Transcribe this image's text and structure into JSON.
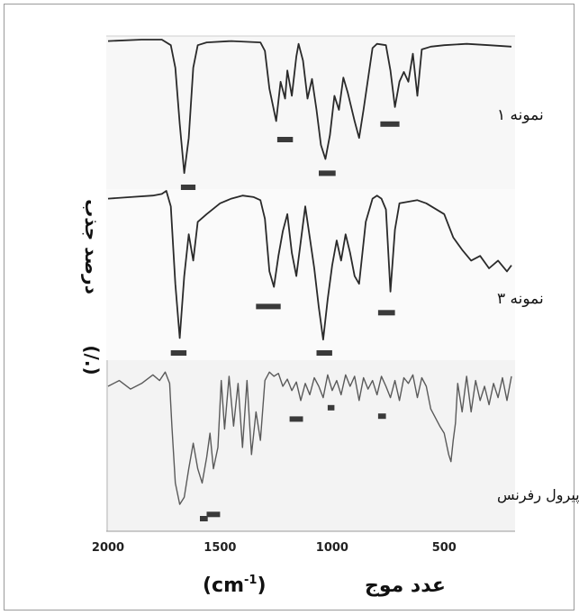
{
  "chart_data": {
    "type": "line",
    "title": "",
    "xlabel": "عدد موج(cm-1)",
    "xlabel_text": "عدد موج",
    "xlabel_unit": "(cm",
    "xlabel_sup": "-1",
    "xlabel_close": ")",
    "ylabel": "درصد جذب (%)",
    "ylabel_text": "درصد جذب",
    "ylabel_unit": "(/.)",
    "xlim": [
      2000,
      200
    ],
    "x_ticks": [
      2000,
      1500,
      1000,
      500
    ],
    "x_tick_labels": [
      "2000",
      "1500",
      "1000",
      "500"
    ],
    "grid": false,
    "series": [
      {
        "name": "نمونه ۱",
        "label": "نمونه ۱",
        "color": "#2a2a2a",
        "x": [
          2000,
          1850,
          1760,
          1720,
          1700,
          1680,
          1660,
          1640,
          1620,
          1600,
          1560,
          1450,
          1320,
          1300,
          1280,
          1250,
          1230,
          1210,
          1200,
          1180,
          1160,
          1150,
          1130,
          1110,
          1090,
          1070,
          1050,
          1030,
          1010,
          990,
          970,
          950,
          930,
          900,
          880,
          860,
          820,
          800,
          760,
          740,
          720,
          700,
          680,
          660,
          640,
          620,
          600,
          560,
          500,
          400,
          300,
          200
        ],
        "y": [
          99,
          100,
          100,
          96,
          80,
          40,
          5,
          30,
          80,
          96,
          98,
          99,
          98,
          92,
          65,
          42,
          70,
          58,
          78,
          60,
          88,
          97,
          85,
          58,
          72,
          50,
          25,
          15,
          32,
          60,
          50,
          73,
          62,
          42,
          30,
          50,
          94,
          97,
          96,
          78,
          52,
          70,
          77,
          70,
          90,
          60,
          93,
          95,
          96,
          97,
          96,
          95
        ]
      },
      {
        "name": "نمونه ۳",
        "label": "نمونه ۳",
        "color": "#2a2a2a",
        "x": [
          2000,
          1900,
          1800,
          1760,
          1740,
          1720,
          1700,
          1680,
          1660,
          1640,
          1620,
          1600,
          1560,
          1500,
          1450,
          1400,
          1350,
          1320,
          1300,
          1280,
          1260,
          1240,
          1220,
          1200,
          1180,
          1160,
          1120,
          1100,
          1080,
          1060,
          1040,
          1020,
          1000,
          980,
          960,
          940,
          920,
          900,
          880,
          850,
          820,
          800,
          780,
          760,
          740,
          720,
          700,
          660,
          620,
          580,
          500,
          460,
          420,
          380,
          340,
          300,
          260,
          220,
          200
        ],
        "y": [
          95,
          96,
          97,
          98,
          100,
          90,
          40,
          5,
          45,
          72,
          55,
          80,
          85,
          92,
          95,
          97,
          96,
          94,
          82,
          48,
          38,
          58,
          74,
          85,
          60,
          45,
          90,
          70,
          50,
          25,
          4,
          30,
          52,
          68,
          55,
          72,
          60,
          45,
          40,
          80,
          95,
          97,
          95,
          88,
          35,
          75,
          92,
          93,
          94,
          92,
          85,
          70,
          62,
          55,
          58,
          50,
          55,
          48,
          52
        ]
      },
      {
        "name": "پلی پیرول رفرنس",
        "label": "پلی پیرول رفرنس",
        "color": "#5a5a5a",
        "x": [
          2000,
          1950,
          1900,
          1850,
          1800,
          1770,
          1745,
          1725,
          1715,
          1700,
          1680,
          1660,
          1640,
          1620,
          1600,
          1580,
          1560,
          1545,
          1530,
          1510,
          1495,
          1480,
          1460,
          1440,
          1420,
          1400,
          1380,
          1360,
          1340,
          1320,
          1300,
          1280,
          1260,
          1240,
          1220,
          1200,
          1180,
          1160,
          1140,
          1120,
          1100,
          1080,
          1060,
          1040,
          1020,
          1000,
          980,
          960,
          940,
          920,
          900,
          880,
          860,
          840,
          820,
          800,
          780,
          760,
          740,
          720,
          700,
          680,
          660,
          640,
          620,
          600,
          580,
          560,
          540,
          520,
          500,
          480,
          470,
          460,
          450,
          440,
          420,
          400,
          380,
          360,
          340,
          320,
          300,
          280,
          260,
          240,
          220,
          200
        ],
        "y": [
          88,
          92,
          86,
          90,
          96,
          92,
          98,
          90,
          60,
          20,
          5,
          10,
          30,
          48,
          30,
          20,
          38,
          55,
          30,
          45,
          92,
          58,
          95,
          60,
          90,
          45,
          92,
          40,
          70,
          50,
          92,
          98,
          95,
          97,
          88,
          93,
          85,
          91,
          78,
          90,
          82,
          94,
          88,
          80,
          96,
          85,
          92,
          82,
          96,
          88,
          95,
          78,
          94,
          86,
          92,
          82,
          95,
          88,
          80,
          92,
          78,
          94,
          90,
          96,
          80,
          94,
          88,
          72,
          66,
          60,
          55,
          40,
          35,
          50,
          62,
          90,
          70,
          95,
          70,
          92,
          78,
          88,
          75,
          90,
          80,
          94,
          78,
          95
        ]
      }
    ],
    "bands": [
      {
        "series": 0,
        "x_from": 1675,
        "x_to": 1610,
        "y": 0
      },
      {
        "series": 0,
        "x_from": 1245,
        "x_to": 1175,
        "y": 34
      },
      {
        "series": 0,
        "x_from": 1060,
        "x_to": 985,
        "y": 10
      },
      {
        "series": 0,
        "x_from": 785,
        "x_to": 700,
        "y": 45
      },
      {
        "series": 1,
        "x_from": 1720,
        "x_to": 1650,
        "y": 0
      },
      {
        "series": 1,
        "x_from": 1340,
        "x_to": 1230,
        "y": 30
      },
      {
        "series": 1,
        "x_from": 1070,
        "x_to": 1000,
        "y": 0
      },
      {
        "series": 1,
        "x_from": 795,
        "x_to": 720,
        "y": 26
      },
      {
        "series": 2,
        "x_from": 1590,
        "x_to": 1555,
        "y": 0
      },
      {
        "series": 2,
        "x_from": 1560,
        "x_to": 1500,
        "y": 3
      },
      {
        "series": 2,
        "x_from": 1190,
        "x_to": 1130,
        "y": 70
      },
      {
        "series": 2,
        "x_from": 1020,
        "x_to": 990,
        "y": 78
      },
      {
        "series": 2,
        "x_from": 795,
        "x_to": 760,
        "y": 72
      }
    ]
  }
}
